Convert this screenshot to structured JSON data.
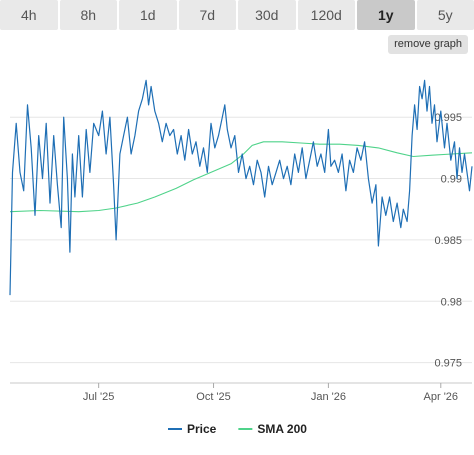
{
  "tabs": [
    {
      "label": "4h",
      "active": false
    },
    {
      "label": "8h",
      "active": false
    },
    {
      "label": "1d",
      "active": false
    },
    {
      "label": "7d",
      "active": false
    },
    {
      "label": "30d",
      "active": false
    },
    {
      "label": "120d",
      "active": false
    },
    {
      "label": "1y",
      "active": true
    },
    {
      "label": "5y",
      "active": false
    }
  ],
  "remove_graph_label": "remove graph",
  "colors": {
    "price": "#1f6fb5",
    "sma": "#4fd38a",
    "grid": "#e6e6e6",
    "tab_bg": "#e9e9e9",
    "tab_active_bg": "#c9c9c9"
  },
  "chart_data": {
    "type": "line",
    "title": "",
    "xlabel": "",
    "ylabel": "",
    "ylim": [
      0.9735,
      0.9995
    ],
    "xlim": [
      "2025-04-21",
      "2026-04-26"
    ],
    "yticks": [
      0.975,
      0.98,
      0.985,
      0.99,
      0.995
    ],
    "ytick_labels": [
      "0.975",
      "0.98",
      "0.985",
      "0.99",
      "0.995"
    ],
    "xticks": [
      {
        "date": "2025-07-01",
        "label": "Jul '25"
      },
      {
        "date": "2025-10-01",
        "label": "Oct '25"
      },
      {
        "date": "2026-01-01",
        "label": "Jan '26"
      },
      {
        "date": "2026-04-01",
        "label": "Apr '26"
      }
    ],
    "legend": {
      "position": "bottom"
    },
    "grid": true,
    "series": [
      {
        "name": "Price",
        "color": "#1f6fb5",
        "points": [
          [
            "2025-04-21",
            0.9805
          ],
          [
            "2025-04-23",
            0.9905
          ],
          [
            "2025-04-26",
            0.9945
          ],
          [
            "2025-04-29",
            0.9905
          ],
          [
            "2025-05-02",
            0.989
          ],
          [
            "2025-05-05",
            0.996
          ],
          [
            "2025-05-08",
            0.9925
          ],
          [
            "2025-05-11",
            0.987
          ],
          [
            "2025-05-14",
            0.9935
          ],
          [
            "2025-05-17",
            0.99
          ],
          [
            "2025-05-20",
            0.9945
          ],
          [
            "2025-05-23",
            0.988
          ],
          [
            "2025-05-26",
            0.9935
          ],
          [
            "2025-05-29",
            0.9895
          ],
          [
            "2025-06-01",
            0.986
          ],
          [
            "2025-06-03",
            0.995
          ],
          [
            "2025-06-06",
            0.99
          ],
          [
            "2025-06-08",
            0.984
          ],
          [
            "2025-06-10",
            0.992
          ],
          [
            "2025-06-12",
            0.9885
          ],
          [
            "2025-06-15",
            0.9935
          ],
          [
            "2025-06-18",
            0.9885
          ],
          [
            "2025-06-21",
            0.994
          ],
          [
            "2025-06-24",
            0.9905
          ],
          [
            "2025-06-27",
            0.9945
          ],
          [
            "2025-07-01",
            0.9935
          ],
          [
            "2025-07-04",
            0.9955
          ],
          [
            "2025-07-07",
            0.992
          ],
          [
            "2025-07-10",
            0.995
          ],
          [
            "2025-07-13",
            0.9895
          ],
          [
            "2025-07-15",
            0.985
          ],
          [
            "2025-07-18",
            0.992
          ],
          [
            "2025-07-21",
            0.9935
          ],
          [
            "2025-07-24",
            0.995
          ],
          [
            "2025-07-27",
            0.992
          ],
          [
            "2025-07-30",
            0.9935
          ],
          [
            "2025-08-02",
            0.9955
          ],
          [
            "2025-08-05",
            0.9965
          ],
          [
            "2025-08-08",
            0.998
          ],
          [
            "2025-08-10",
            0.996
          ],
          [
            "2025-08-12",
            0.9975
          ],
          [
            "2025-08-15",
            0.9955
          ],
          [
            "2025-08-18",
            0.9945
          ],
          [
            "2025-08-21",
            0.993
          ],
          [
            "2025-08-24",
            0.9945
          ],
          [
            "2025-08-27",
            0.9935
          ],
          [
            "2025-08-30",
            0.994
          ],
          [
            "2025-09-02",
            0.992
          ],
          [
            "2025-09-05",
            0.9935
          ],
          [
            "2025-09-08",
            0.9915
          ],
          [
            "2025-09-11",
            0.994
          ],
          [
            "2025-09-14",
            0.992
          ],
          [
            "2025-09-17",
            0.993
          ],
          [
            "2025-09-20",
            0.991
          ],
          [
            "2025-09-23",
            0.9925
          ],
          [
            "2025-09-26",
            0.9905
          ],
          [
            "2025-09-29",
            0.9945
          ],
          [
            "2025-10-02",
            0.9925
          ],
          [
            "2025-10-05",
            0.9935
          ],
          [
            "2025-10-08",
            0.995
          ],
          [
            "2025-10-10",
            0.996
          ],
          [
            "2025-10-12",
            0.994
          ],
          [
            "2025-10-15",
            0.9925
          ],
          [
            "2025-10-18",
            0.9935
          ],
          [
            "2025-10-21",
            0.9905
          ],
          [
            "2025-10-24",
            0.992
          ],
          [
            "2025-10-27",
            0.99
          ],
          [
            "2025-10-30",
            0.991
          ],
          [
            "2025-11-02",
            0.9895
          ],
          [
            "2025-11-05",
            0.9915
          ],
          [
            "2025-11-08",
            0.9905
          ],
          [
            "2025-11-11",
            0.9885
          ],
          [
            "2025-11-14",
            0.991
          ],
          [
            "2025-11-17",
            0.9895
          ],
          [
            "2025-11-20",
            0.9905
          ],
          [
            "2025-11-23",
            0.9915
          ],
          [
            "2025-11-26",
            0.99
          ],
          [
            "2025-11-29",
            0.991
          ],
          [
            "2025-12-02",
            0.9895
          ],
          [
            "2025-12-05",
            0.992
          ],
          [
            "2025-12-08",
            0.9905
          ],
          [
            "2025-12-11",
            0.9925
          ],
          [
            "2025-12-14",
            0.99
          ],
          [
            "2025-12-17",
            0.9915
          ],
          [
            "2025-12-20",
            0.993
          ],
          [
            "2025-12-23",
            0.991
          ],
          [
            "2025-12-26",
            0.992
          ],
          [
            "2025-12-29",
            0.9905
          ],
          [
            "2026-01-01",
            0.994
          ],
          [
            "2026-01-03",
            0.991
          ],
          [
            "2026-01-06",
            0.9915
          ],
          [
            "2026-01-09",
            0.9905
          ],
          [
            "2026-01-12",
            0.992
          ],
          [
            "2026-01-15",
            0.989
          ],
          [
            "2026-01-18",
            0.9915
          ],
          [
            "2026-01-21",
            0.9905
          ],
          [
            "2026-01-24",
            0.9925
          ],
          [
            "2026-01-27",
            0.9915
          ],
          [
            "2026-01-30",
            0.993
          ],
          [
            "2026-02-02",
            0.99
          ],
          [
            "2026-02-05",
            0.988
          ],
          [
            "2026-02-08",
            0.9895
          ],
          [
            "2026-02-10",
            0.9845
          ],
          [
            "2026-02-13",
            0.9885
          ],
          [
            "2026-02-16",
            0.987
          ],
          [
            "2026-02-19",
            0.9885
          ],
          [
            "2026-02-22",
            0.9865
          ],
          [
            "2026-02-25",
            0.988
          ],
          [
            "2026-02-28",
            0.986
          ],
          [
            "2026-03-02",
            0.9875
          ],
          [
            "2026-03-05",
            0.9865
          ],
          [
            "2026-03-07",
            0.989
          ],
          [
            "2026-03-09",
            0.9935
          ],
          [
            "2026-03-11",
            0.996
          ],
          [
            "2026-03-13",
            0.994
          ],
          [
            "2026-03-15",
            0.9975
          ],
          [
            "2026-03-17",
            0.9965
          ],
          [
            "2026-03-19",
            0.998
          ],
          [
            "2026-03-21",
            0.9955
          ],
          [
            "2026-03-23",
            0.9975
          ],
          [
            "2026-03-25",
            0.9945
          ],
          [
            "2026-03-27",
            0.996
          ],
          [
            "2026-03-29",
            0.993
          ],
          [
            "2026-04-01",
            0.9955
          ],
          [
            "2026-04-04",
            0.9925
          ],
          [
            "2026-04-06",
            0.9945
          ],
          [
            "2026-04-09",
            0.9915
          ],
          [
            "2026-04-12",
            0.993
          ],
          [
            "2026-04-14",
            0.99
          ],
          [
            "2026-04-16",
            0.9925
          ],
          [
            "2026-04-18",
            0.9905
          ],
          [
            "2026-04-20",
            0.992
          ],
          [
            "2026-04-22",
            0.9905
          ],
          [
            "2026-04-24",
            0.989
          ],
          [
            "2026-04-26",
            0.991
          ]
        ]
      },
      {
        "name": "SMA 200",
        "color": "#4fd38a",
        "points": [
          [
            "2025-04-21",
            0.9873
          ],
          [
            "2025-05-15",
            0.9874
          ],
          [
            "2025-06-15",
            0.9873
          ],
          [
            "2025-07-01",
            0.9874
          ],
          [
            "2025-07-15",
            0.9876
          ],
          [
            "2025-08-01",
            0.988
          ],
          [
            "2025-08-15",
            0.9885
          ],
          [
            "2025-09-01",
            0.9892
          ],
          [
            "2025-09-15",
            0.9899
          ],
          [
            "2025-10-01",
            0.9906
          ],
          [
            "2025-10-15",
            0.9912
          ],
          [
            "2025-10-25",
            0.992
          ],
          [
            "2025-11-01",
            0.9927
          ],
          [
            "2025-11-10",
            0.993
          ],
          [
            "2025-11-25",
            0.993
          ],
          [
            "2025-12-10",
            0.9929
          ],
          [
            "2025-12-25",
            0.9928
          ],
          [
            "2026-01-10",
            0.9928
          ],
          [
            "2026-01-25",
            0.9927
          ],
          [
            "2026-02-10",
            0.9925
          ],
          [
            "2026-02-25",
            0.9921
          ],
          [
            "2026-03-10",
            0.9918
          ],
          [
            "2026-03-25",
            0.9919
          ],
          [
            "2026-04-10",
            0.992
          ],
          [
            "2026-04-26",
            0.9921
          ]
        ]
      }
    ]
  }
}
